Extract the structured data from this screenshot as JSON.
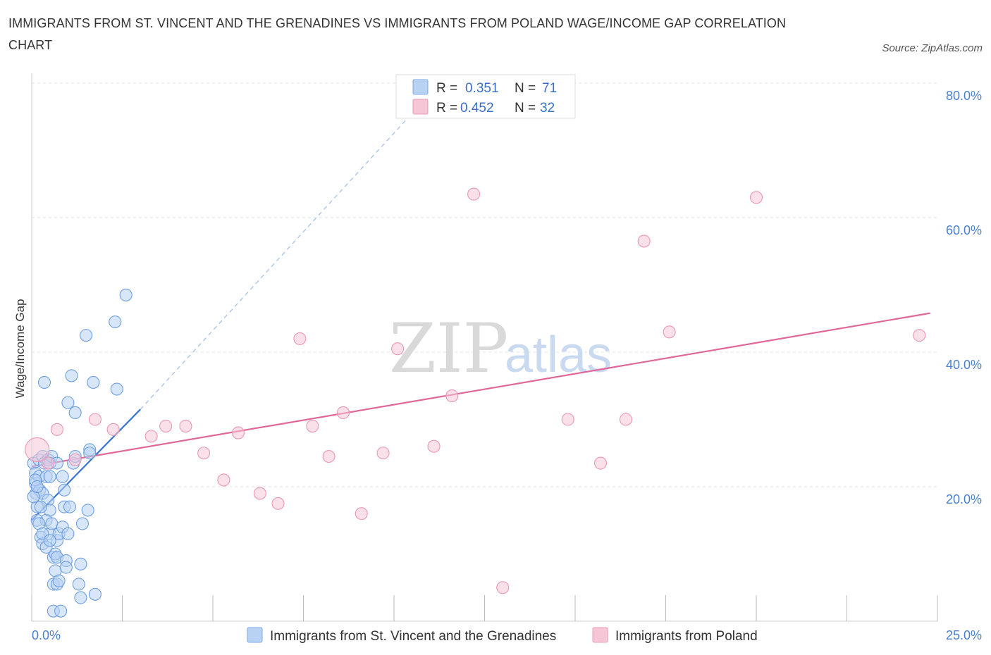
{
  "title": "IMMIGRANTS FROM ST. VINCENT AND THE GRENADINES VS IMMIGRANTS FROM POLAND WAGE/INCOME GAP CORRELATION CHART",
  "source": "Source: ZipAtlas.com",
  "watermark": {
    "zip": "ZIP",
    "atlas": "atlas"
  },
  "colors": {
    "blue": "#3a74d1",
    "blue_fill": "#b8d2f4",
    "pink": "#e0679a",
    "pink_fill": "#f6c6d6"
  },
  "legend": {
    "rows": [
      {
        "r_label": "R =",
        "r_value": "0.351",
        "n_label": "N =",
        "n_value": "71"
      },
      {
        "r_label": "R =",
        "r_value": "0.452",
        "n_label": "N =",
        "n_value": "32"
      }
    ]
  },
  "chart_data": {
    "type": "scatter",
    "title": "IMMIGRANTS FROM ST. VINCENT AND THE GRENADINES VS IMMIGRANTS FROM POLAND WAGE/INCOME GAP CORRELATION CHART",
    "xlabel": "",
    "ylabel": "Wage/Income Gap",
    "xlim": [
      0,
      25
    ],
    "ylim": [
      0,
      80
    ],
    "x_ticks": [
      "0.0%",
      "25.0%"
    ],
    "y_ticks": [
      "20.0%",
      "40.0%",
      "60.0%",
      "80.0%"
    ],
    "y_tick_values": [
      20,
      40,
      60,
      80
    ],
    "grid": true,
    "legend_position": "top-center",
    "series": [
      {
        "name": "Immigrants from St. Vincent and the Grenadines",
        "color": "#3a74d1",
        "fill": "#b8d2f4",
        "points": [
          [
            0.05,
            23.5
          ],
          [
            0.1,
            22
          ],
          [
            0.1,
            20.5
          ],
          [
            0.12,
            19
          ],
          [
            0.15,
            17
          ],
          [
            0.15,
            15
          ],
          [
            0.2,
            24
          ],
          [
            0.2,
            21.5
          ],
          [
            0.22,
            19.5
          ],
          [
            0.25,
            12.5
          ],
          [
            0.3,
            24.5
          ],
          [
            0.3,
            19
          ],
          [
            0.3,
            11.5
          ],
          [
            0.35,
            35.5
          ],
          [
            0.35,
            23.5
          ],
          [
            0.4,
            21.5
          ],
          [
            0.4,
            15
          ],
          [
            0.45,
            24
          ],
          [
            0.45,
            18
          ],
          [
            0.5,
            23.5
          ],
          [
            0.5,
            21.5
          ],
          [
            0.5,
            16.5
          ],
          [
            0.5,
            13
          ],
          [
            0.55,
            24.5
          ],
          [
            0.55,
            14.5
          ],
          [
            0.6,
            9.5
          ],
          [
            0.6,
            5.5
          ],
          [
            0.6,
            1.5
          ],
          [
            0.65,
            10
          ],
          [
            0.65,
            7.5
          ],
          [
            0.7,
            23.5
          ],
          [
            0.7,
            12
          ],
          [
            0.7,
            9.5
          ],
          [
            0.7,
            5.5
          ],
          [
            0.75,
            13
          ],
          [
            0.75,
            6
          ],
          [
            0.8,
            1.5
          ],
          [
            0.85,
            14
          ],
          [
            0.85,
            21.5
          ],
          [
            0.9,
            19.5
          ],
          [
            0.9,
            17
          ],
          [
            0.95,
            9
          ],
          [
            0.95,
            8
          ],
          [
            1.0,
            32.5
          ],
          [
            1.0,
            13
          ],
          [
            1.05,
            17
          ],
          [
            1.1,
            36.5
          ],
          [
            1.15,
            23.5
          ],
          [
            1.2,
            31
          ],
          [
            1.2,
            24.5
          ],
          [
            1.3,
            5.5
          ],
          [
            1.35,
            8.5
          ],
          [
            1.35,
            3.5
          ],
          [
            1.4,
            14.5
          ],
          [
            1.5,
            42.5
          ],
          [
            1.55,
            16.5
          ],
          [
            1.6,
            25.5
          ],
          [
            1.6,
            25
          ],
          [
            1.7,
            35.5
          ],
          [
            1.75,
            4
          ],
          [
            2.3,
            44.5
          ],
          [
            2.35,
            34.5
          ],
          [
            2.6,
            48.5
          ],
          [
            0.05,
            18.5
          ],
          [
            0.1,
            21
          ],
          [
            0.15,
            20
          ],
          [
            0.2,
            14.5
          ],
          [
            0.25,
            17
          ],
          [
            0.3,
            13
          ],
          [
            0.4,
            11
          ],
          [
            0.5,
            12
          ]
        ],
        "trend": {
          "x": [
            0,
            3.0
          ],
          "y": [
            15.0,
            31.5
          ],
          "dashed_extension": {
            "x": [
              3.0,
              10.5
            ],
            "y": [
              31.5,
              75.5
            ]
          }
        }
      },
      {
        "name": "Immigrants from Poland",
        "color": "#e0679a",
        "fill": "#f6c6d6",
        "points": [
          [
            0.15,
            25.5
          ],
          [
            0.7,
            28.5
          ],
          [
            1.2,
            24
          ],
          [
            1.75,
            30
          ],
          [
            2.25,
            28.5
          ],
          [
            3.3,
            27.5
          ],
          [
            3.7,
            29
          ],
          [
            4.25,
            29
          ],
          [
            4.75,
            25
          ],
          [
            5.3,
            21
          ],
          [
            5.7,
            28
          ],
          [
            6.3,
            19
          ],
          [
            6.8,
            17.5
          ],
          [
            7.4,
            42
          ],
          [
            7.75,
            29
          ],
          [
            8.2,
            24.5
          ],
          [
            8.6,
            31
          ],
          [
            9.1,
            16
          ],
          [
            9.7,
            25
          ],
          [
            10.1,
            40.5
          ],
          [
            11.1,
            26
          ],
          [
            11.6,
            33.5
          ],
          [
            12.2,
            63.5
          ],
          [
            13,
            5
          ],
          [
            14.8,
            30
          ],
          [
            15.7,
            23.5
          ],
          [
            16.4,
            30
          ],
          [
            16.9,
            56.5
          ],
          [
            17.6,
            43
          ],
          [
            20.0,
            63
          ],
          [
            24.5,
            42.5
          ],
          [
            0.45,
            23.5
          ]
        ],
        "trend": {
          "x": [
            0,
            24.8
          ],
          "y": [
            23.0,
            45.8
          ]
        }
      }
    ]
  },
  "bottom_legend": [
    {
      "label": "Immigrants from St. Vincent and the Grenadines"
    },
    {
      "label": "Immigrants from Poland"
    }
  ]
}
